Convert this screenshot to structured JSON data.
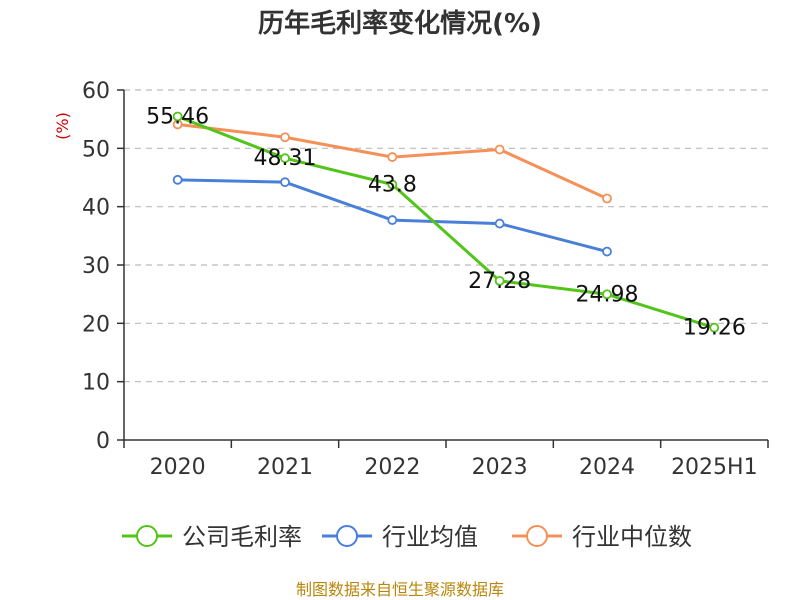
{
  "chart_data": {
    "type": "line",
    "title": "历年毛利率变化情况(%)",
    "ylabel": "(%)",
    "xlabel": "",
    "categories": [
      "2020",
      "2021",
      "2022",
      "2023",
      "2024",
      "2025H1"
    ],
    "ylim": [
      0,
      60
    ],
    "yticks": [
      0,
      10,
      20,
      30,
      40,
      50,
      60
    ],
    "grid": "horizontal-dashed",
    "legend_position": "bottom",
    "series": [
      {
        "name": "公司毛利率",
        "color": "#52c41a",
        "values": [
          55.46,
          48.31,
          43.8,
          27.28,
          24.98,
          19.26
        ],
        "labels": [
          "55.46",
          "48.31",
          "43.8",
          "27.28",
          "24.98",
          "19.26"
        ]
      },
      {
        "name": "行业均值",
        "color": "#4a7fd9",
        "values": [
          44.6,
          44.2,
          37.7,
          37.1,
          32.3,
          null
        ],
        "labels": []
      },
      {
        "name": "行业中位数",
        "color": "#f59058",
        "values": [
          54.1,
          51.9,
          48.5,
          49.8,
          41.4,
          null
        ],
        "labels": []
      }
    ]
  },
  "footer": {
    "source": "制图数据来自恒生聚源数据库"
  }
}
